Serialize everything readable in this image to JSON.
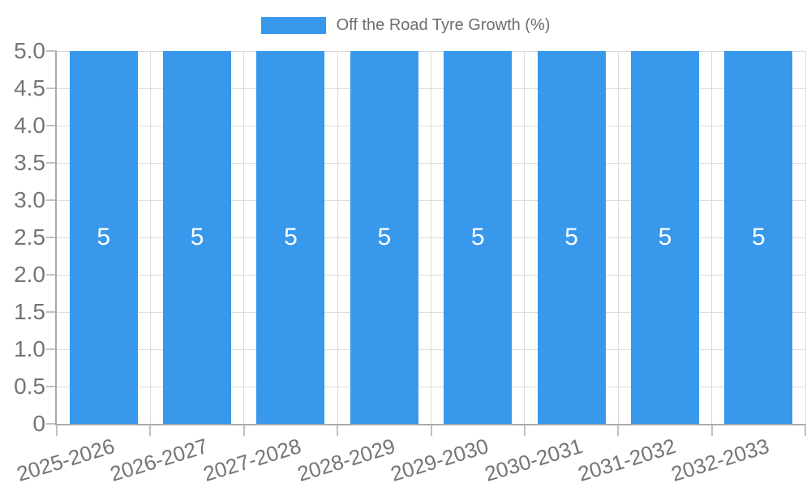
{
  "colors": {
    "bar": "#3898ec",
    "bar_label": "#ffffff",
    "axis_text": "#757575",
    "legend_text": "#6e6e6e",
    "grid_line": "#dcdcdc",
    "tick": "#c2c2c2",
    "axis_line": "#aaaaaa",
    "background": "#ffffff"
  },
  "legend": {
    "position": "top",
    "items": [
      {
        "label": "Off the Road Tyre Growth (%)",
        "color": "#3898ec"
      }
    ]
  },
  "chart_data": {
    "type": "bar",
    "title": "",
    "xlabel": "",
    "ylabel": "",
    "categories": [
      "2025-2026",
      "2026-2027",
      "2027-2028",
      "2028-2029",
      "2029-2030",
      "2030-2031",
      "2031-2032",
      "2032-2033"
    ],
    "series": [
      {
        "name": "Off the Road Tyre Growth (%)",
        "values": [
          5,
          5,
          5,
          5,
          5,
          5,
          5,
          5
        ]
      }
    ],
    "bar_value_labels": [
      "5",
      "5",
      "5",
      "5",
      "5",
      "5",
      "5",
      "5"
    ],
    "ylim": [
      0,
      5
    ],
    "ytick_labels": [
      "5.0",
      "4.5",
      "4.0",
      "3.5",
      "3.0",
      "2.5",
      "2.0",
      "1.5",
      "1.0",
      "0.5",
      "0"
    ],
    "grid": true,
    "legend_position": "top",
    "x_tick_label_rotation_deg": -17
  }
}
